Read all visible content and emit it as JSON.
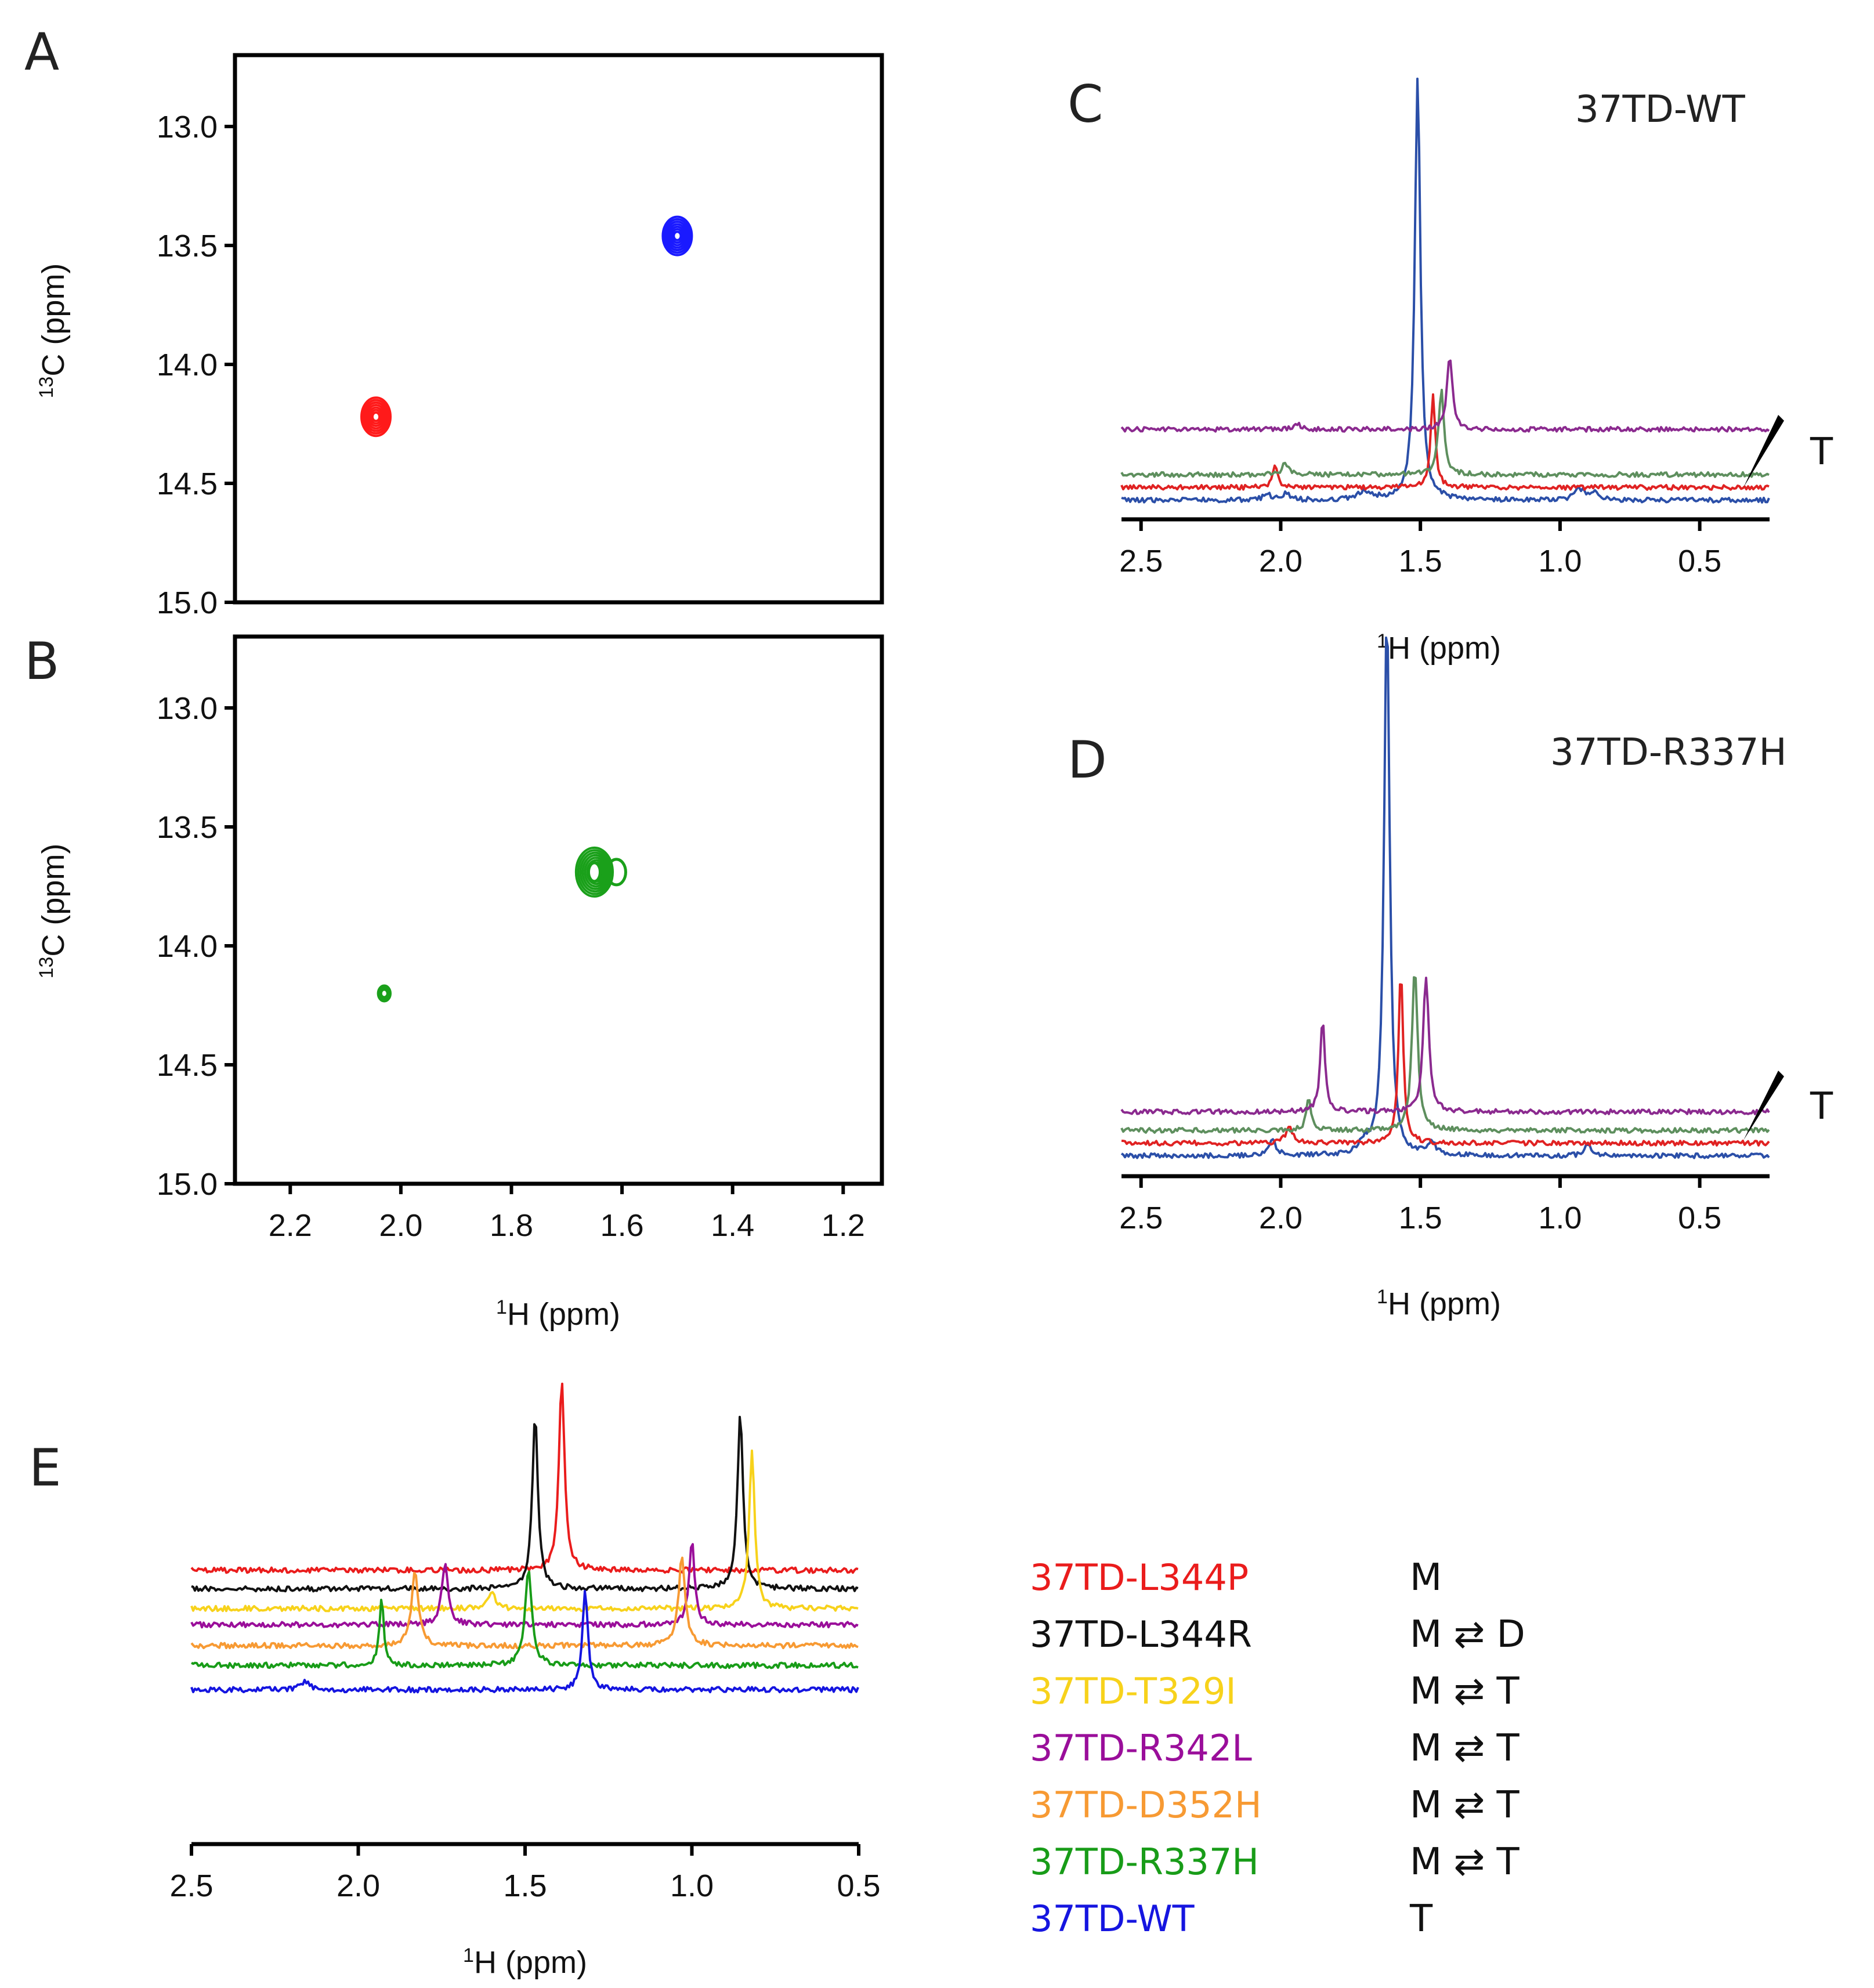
{
  "figure": {
    "panel_labels": [
      "A",
      "B",
      "C",
      "D",
      "E"
    ],
    "ppm_unit": "(ppm)",
    "h_axis_label": "1H (ppm)",
    "c_axis_label": "13C (ppm)"
  },
  "chart_data": [
    {
      "panel": "A",
      "type": "scatter",
      "subtype": "2D HSQC contour",
      "xlabel": "1H (ppm)",
      "ylabel": "13C (ppm)",
      "xlim": [
        2.3,
        1.13
      ],
      "ylim": [
        12.7,
        15.0
      ],
      "x_ticks": [
        "2.2",
        "2.0",
        "1.8",
        "1.6",
        "1.4",
        "1.2"
      ],
      "y_ticks": [
        "13.0",
        "13.5",
        "14.0",
        "14.5",
        "15.0"
      ],
      "show_x_ticks": false,
      "peaks": [
        {
          "x": 1.5,
          "y": 13.46,
          "color": "#1a1aff",
          "intensity": 1.0
        },
        {
          "x": 2.045,
          "y": 14.22,
          "color": "#ff1a1a",
          "intensity": 1.0
        }
      ]
    },
    {
      "panel": "B",
      "type": "scatter",
      "subtype": "2D HSQC contour",
      "xlabel": "1H (ppm)",
      "ylabel": "13C (ppm)",
      "xlim": [
        2.3,
        1.13
      ],
      "ylim": [
        12.7,
        15.0
      ],
      "x_ticks": [
        "2.2",
        "2.0",
        "1.8",
        "1.6",
        "1.4",
        "1.2"
      ],
      "y_ticks": [
        "13.0",
        "13.5",
        "14.0",
        "14.5",
        "15.0"
      ],
      "show_x_ticks": true,
      "peaks": [
        {
          "x": 1.65,
          "y": 13.69,
          "color": "#1aa01a",
          "intensity": 1.3
        },
        {
          "x": 2.03,
          "y": 14.2,
          "color": "#1aa01a",
          "intensity": 0.35
        }
      ]
    },
    {
      "panel": "C",
      "type": "line",
      "title": "37TD-WT",
      "xlabel": "1H (ppm)",
      "xlim": [
        2.57,
        0.25
      ],
      "x_ticks": [
        "2.5",
        "2.0",
        "1.5",
        "1.0",
        "0.5"
      ],
      "temperature_label": "T",
      "series": [
        {
          "color": "#2b4fa8",
          "peaks": [
            {
              "x": 1.51,
              "h": 100,
              "w": 0.012
            },
            {
              "x": 1.7,
              "h": 2,
              "w": 0.03
            },
            {
              "x": 2.05,
              "h": 1.5,
              "w": 0.015
            },
            {
              "x": 1.98,
              "h": 1.5,
              "w": 0.015
            },
            {
              "x": 0.93,
              "h": 2.5,
              "w": 0.02
            },
            {
              "x": 0.88,
              "h": 1.8,
              "w": 0.02
            }
          ]
        },
        {
          "color": "#e02222",
          "peaks": [
            {
              "x": 1.455,
              "h": 22,
              "w": 0.01
            },
            {
              "x": 2.02,
              "h": 5,
              "w": 0.01
            }
          ]
        },
        {
          "color": "#5e8f5e",
          "peaks": [
            {
              "x": 1.425,
              "h": 20,
              "w": 0.012
            },
            {
              "x": 1.985,
              "h": 3,
              "w": 0.012
            }
          ]
        },
        {
          "color": "#8b2a8f",
          "peaks": [
            {
              "x": 1.395,
              "h": 17,
              "w": 0.012
            },
            {
              "x": 1.94,
              "h": 1.5,
              "w": 0.012
            }
          ]
        }
      ]
    },
    {
      "panel": "D",
      "type": "line",
      "title": "37TD-R337H",
      "xlabel": "1H (ppm)",
      "xlim": [
        2.57,
        0.25
      ],
      "x_ticks": [
        "2.5",
        "2.0",
        "1.5",
        "1.0",
        "0.5"
      ],
      "temperature_label": "T",
      "series": [
        {
          "color": "#2b4fa8",
          "peaks": [
            {
              "x": 1.62,
              "h": 100,
              "w": 0.012
            },
            {
              "x": 2.03,
              "h": 3,
              "w": 0.015
            },
            {
              "x": 1.7,
              "h": 2,
              "w": 0.02
            },
            {
              "x": 1.46,
              "h": 2.5,
              "w": 0.015
            },
            {
              "x": 0.9,
              "h": 2,
              "w": 0.015
            }
          ]
        },
        {
          "color": "#e02222",
          "peaks": [
            {
              "x": 1.57,
              "h": 32,
              "w": 0.01
            },
            {
              "x": 1.97,
              "h": 3,
              "w": 0.015
            }
          ]
        },
        {
          "color": "#5e8f5e",
          "peaks": [
            {
              "x": 1.52,
              "h": 30,
              "w": 0.012
            },
            {
              "x": 1.9,
              "h": 6,
              "w": 0.01
            }
          ]
        },
        {
          "color": "#8b2a8f",
          "peaks": [
            {
              "x": 1.48,
              "h": 25,
              "w": 0.012
            },
            {
              "x": 1.85,
              "h": 17,
              "w": 0.01
            }
          ]
        }
      ]
    },
    {
      "panel": "E",
      "type": "line",
      "xlabel": "1H (ppm)",
      "xlim": [
        2.5,
        0.5
      ],
      "x_ticks": [
        "2.5",
        "2.0",
        "1.5",
        "1.5",
        "1.0",
        "0.5"
      ],
      "series": [
        {
          "name": "37TD-L344P",
          "color": "#ea1c1c",
          "state": "M",
          "peaks": [
            {
              "x": 1.39,
              "h": 100,
              "w": 0.01
            }
          ]
        },
        {
          "name": "37TD-L344R",
          "color": "#111111",
          "state": "M ⇄ D",
          "peaks": [
            {
              "x": 1.47,
              "h": 100,
              "w": 0.01
            },
            {
              "x": 0.855,
              "h": 100,
              "w": 0.01
            }
          ]
        },
        {
          "name": "37TD-T329I",
          "color": "#f7d21b",
          "state": "M ⇄ T",
          "peaks": [
            {
              "x": 1.6,
              "h": 12,
              "w": 0.012
            },
            {
              "x": 0.82,
              "h": 100,
              "w": 0.01
            }
          ]
        },
        {
          "name": "37TD-R342L",
          "color": "#9a0e9a",
          "state": "M ⇄ T",
          "peaks": [
            {
              "x": 1.74,
              "h": 50,
              "w": 0.012
            },
            {
              "x": 1.0,
              "h": 70,
              "w": 0.01
            }
          ]
        },
        {
          "name": "37TD-D352H",
          "color": "#f79a33",
          "state": "M ⇄ T",
          "peaks": [
            {
              "x": 1.83,
              "h": 70,
              "w": 0.012
            },
            {
              "x": 1.03,
              "h": 80,
              "w": 0.012
            }
          ]
        },
        {
          "name": "37TD-R337H",
          "color": "#189c18",
          "state": "M ⇄ T",
          "peaks": [
            {
              "x": 1.93,
              "h": 65,
              "w": 0.008
            },
            {
              "x": 1.49,
              "h": 95,
              "w": 0.012
            }
          ]
        },
        {
          "name": "37TD-WT",
          "color": "#1515e0",
          "state": "T",
          "peaks": [
            {
              "x": 1.32,
              "h": 100,
              "w": 0.01
            },
            {
              "x": 2.16,
              "h": 8,
              "w": 0.015
            }
          ]
        }
      ]
    }
  ]
}
